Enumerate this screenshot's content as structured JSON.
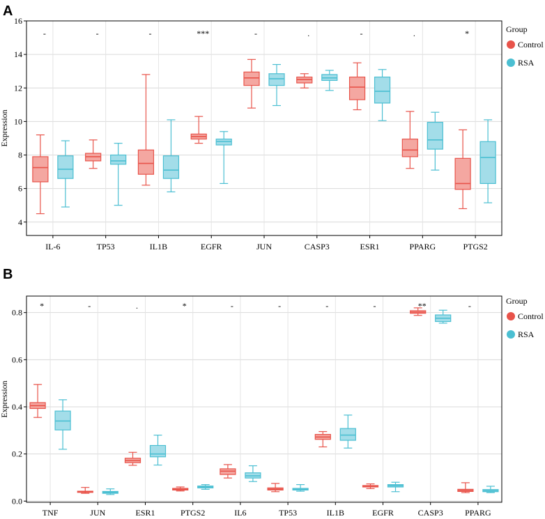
{
  "chart_data": [
    {
      "panel": "A",
      "type": "boxplot",
      "ylabel": "Expression",
      "xlabel": "",
      "ylim": [
        3.2,
        16
      ],
      "yticks": [
        4,
        6,
        8,
        10,
        12,
        14,
        16
      ],
      "ytick_labels": [
        "4",
        "6",
        "8",
        "10",
        "12",
        "14",
        "16"
      ],
      "grid": true,
      "legend": {
        "title": "Group",
        "position": "right",
        "entries": [
          "Control",
          "RSA"
        ]
      },
      "categories": [
        "IL-6",
        "TP53",
        "IL1B",
        "EGFR",
        "JUN",
        "CASP3",
        "ESR1",
        "PPARG",
        "PTGS2"
      ],
      "significance": [
        "-",
        "-",
        "-",
        "***",
        "-",
        ".",
        "-",
        ".",
        "*"
      ],
      "series": [
        {
          "name": "Control",
          "color": "#e8534a",
          "fill": "#f4a7a1",
          "boxes": [
            [
              4.5,
              6.4,
              7.25,
              7.9,
              9.2
            ],
            [
              7.2,
              7.65,
              7.9,
              8.1,
              8.9
            ],
            [
              6.2,
              6.85,
              7.5,
              8.3,
              12.8
            ],
            [
              8.7,
              8.95,
              9.1,
              9.25,
              10.3
            ],
            [
              10.8,
              12.15,
              12.6,
              12.95,
              13.7
            ],
            [
              12.0,
              12.3,
              12.5,
              12.65,
              12.85
            ],
            [
              10.7,
              11.3,
              12.05,
              12.65,
              13.5
            ],
            [
              7.2,
              7.9,
              8.3,
              8.95,
              10.6
            ],
            [
              4.8,
              5.95,
              6.3,
              7.8,
              9.5
            ]
          ]
        },
        {
          "name": "RSA",
          "color": "#4bbfd2",
          "fill": "#a3dde9",
          "boxes": [
            [
              4.9,
              6.6,
              7.15,
              7.95,
              8.85
            ],
            [
              5.0,
              7.45,
              7.65,
              8.0,
              8.7
            ],
            [
              5.8,
              6.6,
              7.1,
              7.95,
              10.1
            ],
            [
              6.3,
              8.6,
              8.8,
              8.95,
              9.4
            ],
            [
              10.95,
              12.15,
              12.55,
              12.85,
              13.4
            ],
            [
              11.85,
              12.45,
              12.6,
              12.8,
              13.05
            ],
            [
              10.05,
              11.1,
              11.8,
              12.65,
              13.1
            ],
            [
              7.1,
              8.35,
              8.9,
              9.95,
              10.55
            ],
            [
              5.15,
              6.3,
              7.85,
              8.8,
              10.1
            ]
          ]
        }
      ]
    },
    {
      "panel": "B",
      "type": "boxplot",
      "ylabel": "Expression",
      "xlabel": "",
      "ylim": [
        -0.005,
        0.87
      ],
      "yticks": [
        0.0,
        0.2,
        0.4,
        0.6,
        0.8
      ],
      "ytick_labels": [
        "0.0",
        "0.2",
        "0.4",
        "0.6",
        "0.8"
      ],
      "grid": true,
      "legend": {
        "title": "Group",
        "position": "right",
        "entries": [
          "Control",
          "RSA"
        ]
      },
      "categories": [
        "TNF",
        "JUN",
        "ESR1",
        "PTGS2",
        "IL6",
        "TP53",
        "IL1B",
        "EGFR",
        "CASP3",
        "PPARG"
      ],
      "significance": [
        "*",
        "-",
        ".",
        "*",
        "-",
        "-",
        "-",
        "-",
        "**",
        "-"
      ],
      "series": [
        {
          "name": "Control",
          "color": "#e8534a",
          "fill": "#f4a7a1",
          "boxes": [
            [
              0.355,
              0.393,
              0.405,
              0.418,
              0.495
            ],
            [
              0.033,
              0.037,
              0.039,
              0.042,
              0.058
            ],
            [
              0.152,
              0.163,
              0.172,
              0.182,
              0.207
            ],
            [
              0.043,
              0.047,
              0.05,
              0.054,
              0.06
            ],
            [
              0.098,
              0.113,
              0.127,
              0.137,
              0.155
            ],
            [
              0.04,
              0.047,
              0.051,
              0.056,
              0.075
            ],
            [
              0.23,
              0.262,
              0.272,
              0.283,
              0.295
            ],
            [
              0.053,
              0.06,
              0.063,
              0.066,
              0.073
            ],
            [
              0.788,
              0.797,
              0.802,
              0.808,
              0.82
            ],
            [
              0.036,
              0.041,
              0.045,
              0.05,
              0.078
            ]
          ]
        },
        {
          "name": "RSA",
          "color": "#4bbfd2",
          "fill": "#a3dde9",
          "boxes": [
            [
              0.22,
              0.302,
              0.34,
              0.382,
              0.43
            ],
            [
              0.028,
              0.033,
              0.037,
              0.041,
              0.052
            ],
            [
              0.153,
              0.188,
              0.2,
              0.236,
              0.28
            ],
            [
              0.05,
              0.056,
              0.06,
              0.064,
              0.07
            ],
            [
              0.083,
              0.098,
              0.107,
              0.12,
              0.15
            ],
            [
              0.042,
              0.047,
              0.05,
              0.054,
              0.07
            ],
            [
              0.225,
              0.258,
              0.28,
              0.308,
              0.365
            ],
            [
              0.04,
              0.06,
              0.065,
              0.07,
              0.08
            ],
            [
              0.755,
              0.762,
              0.776,
              0.79,
              0.81
            ],
            [
              0.036,
              0.04,
              0.044,
              0.049,
              0.063
            ]
          ]
        }
      ]
    }
  ]
}
